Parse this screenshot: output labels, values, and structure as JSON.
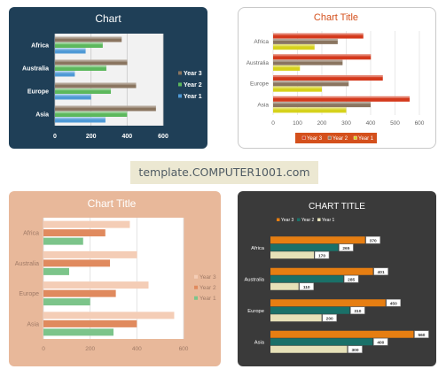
{
  "banner": "template.COMPUTER1001.com",
  "chart_data": [
    {
      "type": "bar",
      "orientation": "horizontal",
      "title": "Chart",
      "categories": [
        "Asia",
        "Europe",
        "Australia",
        "Africa"
      ],
      "series": [
        {
          "name": "Year 1",
          "values": [
            280,
            200,
            110,
            170
          ],
          "color": "#4f9ad6"
        },
        {
          "name": "Year 2",
          "values": [
            400,
            310,
            285,
            265
          ],
          "color": "#5cb85c"
        },
        {
          "name": "Year 3",
          "values": [
            560,
            450,
            401,
            370
          ],
          "color": "#8a7560"
        }
      ],
      "xlim": [
        0,
        600
      ],
      "xticks": [
        0,
        200,
        400,
        600
      ],
      "grid": true,
      "legend": "right",
      "legend_order": [
        "Year 3",
        "Year 2",
        "Year 1"
      ],
      "colors": {
        "panel": "#1f3f57",
        "plot": "#f2f2f2",
        "text": "#ffffff"
      }
    },
    {
      "type": "bar",
      "orientation": "horizontal",
      "title": "Chart Title",
      "categories": [
        "Asia",
        "Europe",
        "Australia",
        "Africa"
      ],
      "series": [
        {
          "name": "Year 1",
          "values": [
            300,
            200,
            110,
            170
          ],
          "color": "#d6d21c"
        },
        {
          "name": "Year 2",
          "values": [
            400,
            310,
            285,
            265
          ],
          "color": "#8a7560"
        },
        {
          "name": "Year 3",
          "values": [
            560,
            450,
            401,
            370
          ],
          "color": "#d4391c"
        }
      ],
      "xlim": [
        0,
        600
      ],
      "xticks": [
        0,
        100,
        200,
        300,
        400,
        500,
        600
      ],
      "grid": true,
      "legend": "bottom",
      "legend_order": [
        "Year 3",
        "Year 2",
        "Year 1"
      ],
      "colors": {
        "panel": "#ffffff",
        "title": "#d4501c",
        "text": "#666666",
        "legend_bg": "#d4501c"
      }
    },
    {
      "type": "bar",
      "orientation": "horizontal",
      "title": "Chart Title",
      "categories": [
        "Asia",
        "Europe",
        "Australia",
        "Africa"
      ],
      "series": [
        {
          "name": "Year 1",
          "values": [
            300,
            200,
            110,
            170
          ],
          "color": "#7cc48a"
        },
        {
          "name": "Year 2",
          "values": [
            400,
            310,
            285,
            265
          ],
          "color": "#e08a5e"
        },
        {
          "name": "Year 3",
          "values": [
            560,
            450,
            401,
            370
          ],
          "color": "#f4cdb6"
        }
      ],
      "xlim": [
        0,
        600
      ],
      "xticks": [
        0,
        200,
        400,
        600
      ],
      "grid": true,
      "legend": "right",
      "legend_order": [
        "Year 3",
        "Year 2",
        "Year 1"
      ],
      "colors": {
        "panel": "#e8b89a",
        "plot": "#ffffff",
        "title": "#ffffff",
        "text": "#a07a66"
      }
    },
    {
      "type": "bar",
      "orientation": "horizontal",
      "title": "CHART TITLE",
      "categories": [
        "Asia",
        "Europe",
        "Australia",
        "Africa"
      ],
      "series": [
        {
          "name": "Year 1",
          "values": [
            300,
            200,
            110,
            170
          ],
          "color": "#e6e1b8"
        },
        {
          "name": "Year 2",
          "values": [
            400,
            310,
            285,
            265
          ],
          "color": "#1a7068"
        },
        {
          "name": "Year 3",
          "values": [
            560,
            450,
            401,
            370
          ],
          "color": "#e67e12"
        }
      ],
      "data_labels": [
        {
          "category": "Asia",
          "values": [
            300,
            400,
            560
          ]
        },
        {
          "category": "Europe",
          "values": [
            200,
            310,
            450
          ]
        },
        {
          "category": "Australia",
          "values": [
            110,
            285,
            401
          ]
        },
        {
          "category": "Africa",
          "values": [
            170,
            265,
            370
          ]
        }
      ],
      "xlim": [
        0,
        600
      ],
      "grid": false,
      "legend": "top",
      "legend_order": [
        "Year 3",
        "Year 2",
        "Year 1"
      ],
      "colors": {
        "panel": "#3a3a3a",
        "title": "#ffffff",
        "text": "#ffffff"
      }
    }
  ]
}
